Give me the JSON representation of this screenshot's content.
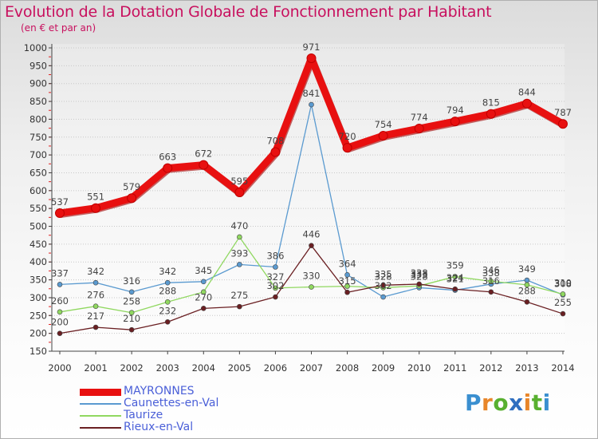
{
  "title": "Evolution de la Dotation Globale de Fonctionnement par Habitant",
  "subtitle": "(en € et par an)",
  "logo": {
    "text": "Proxiti",
    "colors": [
      "#3a8fd0",
      "#e8862a",
      "#58b030",
      "#2f6fc0",
      "#e8862a",
      "#58b030",
      "#3a8fd0"
    ]
  },
  "chart_data": {
    "type": "line",
    "title": "Evolution de la Dotation Globale de Fonctionnement par Habitant",
    "subtitle": "(en € et par an)",
    "xlabel": "",
    "ylabel": "",
    "ylim": [
      150,
      1000
    ],
    "yticks": [
      150,
      200,
      250,
      300,
      350,
      400,
      450,
      500,
      550,
      600,
      650,
      700,
      750,
      800,
      850,
      900,
      950,
      1000
    ],
    "categories": [
      "2000",
      "2001",
      "2002",
      "2003",
      "2004",
      "2005",
      "2006",
      "2007",
      "2008",
      "2009",
      "2010",
      "2011",
      "2012",
      "2013",
      "2014"
    ],
    "series": [
      {
        "name": "MAYRONNES",
        "color": "#e81010",
        "values": [
          537,
          551,
          579,
          663,
          672,
          595,
          708,
          971,
          720,
          754,
          774,
          794,
          815,
          844,
          787
        ]
      },
      {
        "name": "Caunettes-en-Val",
        "color": "#5a9ad0",
        "values": [
          337,
          342,
          316,
          342,
          345,
          393,
          386,
          841,
          364,
          302,
          328,
          321,
          338,
          349,
          308
        ]
      },
      {
        "name": "Taurize",
        "color": "#90d860",
        "values": [
          260,
          276,
          258,
          288,
          316,
          470,
          327,
          330,
          332,
          328,
          333,
          359,
          346,
          336,
          310
        ]
      },
      {
        "name": "Rieux-en-Val",
        "color": "#6a1f22",
        "values": [
          200,
          217,
          210,
          232,
          270,
          275,
          302,
          446,
          315,
          335,
          338,
          324,
          316,
          288,
          255
        ]
      }
    ],
    "data_labels": [
      [
        "537",
        "551",
        "579",
        "663",
        "672",
        "595",
        "708",
        "971",
        "720",
        "754",
        "774",
        "794",
        "815",
        "844",
        "787"
      ],
      [
        "337",
        "342",
        "316",
        "342",
        "345",
        "393",
        "386",
        "841",
        "364",
        "302",
        "328",
        "321",
        "338",
        "349",
        "308"
      ],
      [
        "260",
        "276",
        "258",
        "288",
        "",
        "470",
        "327",
        "330",
        "",
        "328",
        "333",
        "359",
        "346",
        "",
        "310"
      ],
      [
        "200",
        "217",
        "210",
        "232",
        "270",
        "275",
        "302",
        "446",
        "315",
        "335",
        "338",
        "324",
        "316",
        "288",
        "255"
      ]
    ],
    "legend_position": "bottom-left"
  }
}
